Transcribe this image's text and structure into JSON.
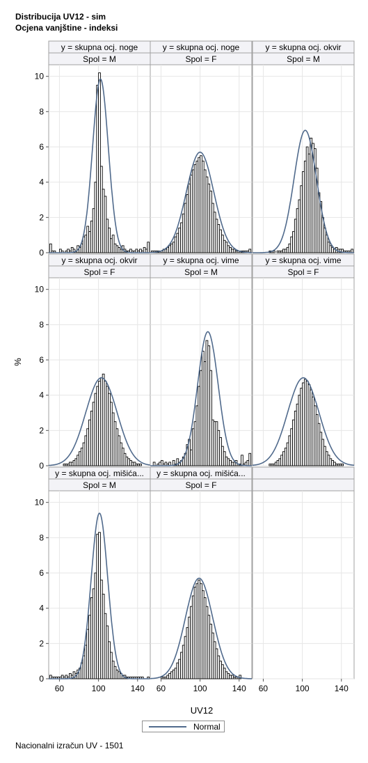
{
  "header": {
    "title": "Distribucija UV12 - sim",
    "subtitle": "Ocjena vanjštine - indeksi"
  },
  "footnote": "Nacionalni izračun UV - 1501",
  "colors": {
    "bar_fill": "#ffffff",
    "bar_edge": "#000000",
    "curve": "#506a8c",
    "header_fill": "#f3f3f7",
    "grid": "#e6e6e6"
  },
  "chart_data": {
    "type": "bar",
    "xlabel": "UV12",
    "ylabel": "%",
    "xlim": [
      49,
      153
    ],
    "ylim": [
      0,
      10.5
    ],
    "xticks": [
      60,
      100,
      140
    ],
    "yticks": [
      0,
      2,
      4,
      6,
      8,
      10
    ],
    "grid": true,
    "legend": {
      "position": "bottom-center",
      "entries": [
        "Normal"
      ]
    },
    "panels": [
      {
        "row_header": "y = skupna ocj. noge",
        "col_header": "Spol = M",
        "x": [
          51,
          53,
          55,
          57,
          59,
          61,
          63,
          65,
          67,
          69,
          71,
          73,
          75,
          77,
          79,
          81,
          83,
          85,
          87,
          89,
          91,
          93,
          95,
          97,
          99,
          101,
          103,
          105,
          107,
          109,
          111,
          113,
          115,
          117,
          119,
          121,
          123,
          125,
          127,
          129,
          131,
          133,
          135,
          137,
          139,
          141,
          143,
          145,
          147,
          149,
          151
        ],
        "values": [
          0.5,
          0.1,
          0.1,
          0,
          0,
          0.2,
          0.1,
          0,
          0.1,
          0.2,
          0.1,
          0.3,
          0.2,
          0.1,
          0.4,
          0.3,
          0.5,
          0.9,
          1.0,
          1.5,
          1.2,
          1.8,
          2.5,
          4.0,
          9.5,
          10.2,
          4.9,
          3.6,
          3.2,
          1.9,
          1.4,
          0.8,
          1.0,
          0.5,
          0.4,
          0.3,
          0.2,
          0.4,
          0.2,
          0.1,
          0.1,
          0.2,
          0.1,
          0.1,
          0.2,
          0.1,
          0.2,
          0.1,
          0.3,
          0.2,
          0.6
        ],
        "normal": {
          "mean": 102,
          "sd": 8.1
        }
      },
      {
        "row_header": "y = skupna ocj. noge",
        "col_header": "Spol = F",
        "x": [
          51,
          53,
          55,
          57,
          59,
          61,
          63,
          65,
          67,
          69,
          71,
          73,
          75,
          77,
          79,
          81,
          83,
          85,
          87,
          89,
          91,
          93,
          95,
          97,
          99,
          101,
          103,
          105,
          107,
          109,
          111,
          113,
          115,
          117,
          119,
          121,
          123,
          125,
          127,
          129,
          131,
          133,
          135,
          137,
          139,
          141,
          143,
          145,
          147,
          149,
          151
        ],
        "values": [
          0.1,
          0.1,
          0.1,
          0.1,
          0.1,
          0.1,
          0.2,
          0.2,
          0.3,
          0.4,
          0.5,
          0.6,
          0.9,
          1.1,
          1.4,
          1.7,
          2.2,
          2.8,
          3.3,
          3.9,
          4.4,
          4.7,
          5.0,
          5.2,
          5.4,
          5.5,
          5.2,
          4.7,
          4.3,
          3.9,
          3.5,
          2.8,
          2.3,
          1.9,
          1.6,
          1.3,
          1.0,
          0.7,
          0.6,
          0.4,
          0.3,
          0.2,
          0.2,
          0.1,
          0.1,
          0.1,
          0.1,
          0.1,
          0.1,
          0.1,
          0.2
        ],
        "normal": {
          "mean": 100,
          "sd": 14
        }
      },
      {
        "row_header": "y = skupna ocj. okvir",
        "col_header": "Spol = M",
        "x": [
          51,
          53,
          55,
          57,
          59,
          61,
          63,
          65,
          67,
          69,
          71,
          73,
          75,
          77,
          79,
          81,
          83,
          85,
          87,
          89,
          91,
          93,
          95,
          97,
          99,
          101,
          103,
          105,
          107,
          109,
          111,
          113,
          115,
          117,
          119,
          121,
          123,
          125,
          127,
          129,
          131,
          133,
          135,
          137,
          139,
          141,
          143,
          145,
          147,
          149,
          151
        ],
        "values": [
          0,
          0,
          0,
          0,
          0,
          0,
          0,
          0,
          0.1,
          0.1,
          0.1,
          0,
          0.1,
          0.1,
          0.1,
          0.2,
          0.2,
          0.3,
          0.5,
          0.9,
          1.2,
          1.9,
          2.5,
          3.0,
          3.8,
          4.6,
          5.2,
          6.0,
          5.6,
          6.5,
          6.2,
          5.9,
          4.8,
          3.4,
          2.9,
          2.0,
          1.4,
          1.0,
          0.6,
          0.4,
          0.3,
          0.2,
          0.3,
          0.2,
          0.2,
          0.2,
          0.1,
          0.1,
          0.1,
          0.1,
          0.2
        ],
        "normal": {
          "mean": 103,
          "sd": 11.5
        }
      },
      {
        "row_header": "y = skupna ocj. okvir",
        "col_header": "Spol = F",
        "x": [
          51,
          53,
          55,
          57,
          59,
          61,
          63,
          65,
          67,
          69,
          71,
          73,
          75,
          77,
          79,
          81,
          83,
          85,
          87,
          89,
          91,
          93,
          95,
          97,
          99,
          101,
          103,
          105,
          107,
          109,
          111,
          113,
          115,
          117,
          119,
          121,
          123,
          125,
          127,
          129,
          131,
          133,
          135,
          137,
          139,
          141,
          143,
          145,
          147,
          149,
          151
        ],
        "values": [
          0,
          0,
          0,
          0,
          0,
          0,
          0,
          0.1,
          0.1,
          0.1,
          0.2,
          0.2,
          0.3,
          0.4,
          0.6,
          0.8,
          1.0,
          1.3,
          1.7,
          2.1,
          2.6,
          3.1,
          3.6,
          4.1,
          4.5,
          4.8,
          5.0,
          5.2,
          4.8,
          4.5,
          4.1,
          3.6,
          3.0,
          2.5,
          2.1,
          1.7,
          1.3,
          1.0,
          0.7,
          0.5,
          0.4,
          0.3,
          0.2,
          0.2,
          0.1,
          0.1,
          0.1,
          0,
          0,
          0,
          0
        ],
        "normal": {
          "mean": 103,
          "sd": 16
        }
      },
      {
        "row_header": "y = skupna ocj. vime",
        "col_header": "Spol = M",
        "x": [
          51,
          53,
          55,
          57,
          59,
          61,
          63,
          65,
          67,
          69,
          71,
          73,
          75,
          77,
          79,
          81,
          83,
          85,
          87,
          89,
          91,
          93,
          95,
          97,
          99,
          101,
          103,
          105,
          107,
          109,
          111,
          113,
          115,
          117,
          119,
          121,
          123,
          125,
          127,
          129,
          131,
          133,
          135,
          137,
          139,
          141,
          143,
          145,
          147,
          149,
          151
        ],
        "values": [
          0,
          0.2,
          0,
          0.1,
          0.2,
          0.3,
          0.1,
          0.2,
          0.1,
          0.2,
          0,
          0.3,
          0.1,
          0.4,
          0.2,
          0.3,
          0.5,
          0.7,
          1.2,
          1.5,
          0.9,
          2.1,
          2.5,
          3.4,
          4.5,
          5.4,
          6.5,
          5.9,
          7.1,
          6.8,
          5.4,
          2.6,
          2.5,
          2.5,
          2.0,
          1.6,
          1.1,
          0.8,
          0.5,
          0.4,
          0.3,
          0.2,
          0.2,
          0.3,
          0.1,
          0.1,
          0.6,
          0.1,
          0.2,
          0.3,
          0.7
        ],
        "normal": {
          "mean": 108,
          "sd": 10.5
        }
      },
      {
        "row_header": "y = skupna ocj. vime",
        "col_header": "Spol = F",
        "x": [
          51,
          53,
          55,
          57,
          59,
          61,
          63,
          65,
          67,
          69,
          71,
          73,
          75,
          77,
          79,
          81,
          83,
          85,
          87,
          89,
          91,
          93,
          95,
          97,
          99,
          101,
          103,
          105,
          107,
          109,
          111,
          113,
          115,
          117,
          119,
          121,
          123,
          125,
          127,
          129,
          131,
          133,
          135,
          137,
          139,
          141,
          143,
          145,
          147,
          149,
          151
        ],
        "values": [
          0,
          0,
          0,
          0,
          0,
          0,
          0,
          0,
          0.1,
          0.1,
          0.1,
          0.2,
          0.3,
          0.4,
          0.6,
          0.8,
          1.0,
          1.3,
          1.7,
          2.1,
          2.6,
          3.1,
          3.5,
          4.0,
          4.4,
          4.7,
          4.9,
          4.8,
          4.6,
          4.3,
          3.9,
          3.4,
          2.9,
          2.4,
          1.9,
          1.5,
          1.1,
          0.8,
          0.6,
          0.4,
          0.3,
          0.2,
          0.1,
          0.1,
          0.1,
          0.1,
          0,
          0,
          0,
          0,
          0
        ],
        "normal": {
          "mean": 101,
          "sd": 16
        }
      },
      {
        "row_header": "y = skupna ocj. mišića...",
        "col_header": "Spol = M",
        "x": [
          51,
          53,
          55,
          57,
          59,
          61,
          63,
          65,
          67,
          69,
          71,
          73,
          75,
          77,
          79,
          81,
          83,
          85,
          87,
          89,
          91,
          93,
          95,
          97,
          99,
          101,
          103,
          105,
          107,
          109,
          111,
          113,
          115,
          117,
          119,
          121,
          123,
          125,
          127,
          129,
          131,
          133,
          135,
          137,
          139,
          141,
          143,
          145,
          147,
          149,
          151
        ],
        "values": [
          0.2,
          0.1,
          0.1,
          0.1,
          0.1,
          0.1,
          0.2,
          0.1,
          0.2,
          0.1,
          0.3,
          0.2,
          0.4,
          0.3,
          0.5,
          0.6,
          0.9,
          1.3,
          1.9,
          2.8,
          3.6,
          4.6,
          5.1,
          6.0,
          8.2,
          8.3,
          5.6,
          4.8,
          3.7,
          3.0,
          2.1,
          1.5,
          1.0,
          0.7,
          0.5,
          0.4,
          0.3,
          0.2,
          0.2,
          0.1,
          0.1,
          0.1,
          0.1,
          0.1,
          0.1,
          0.1,
          0.1,
          0.1,
          0,
          0,
          0.1
        ],
        "normal": {
          "mean": 101,
          "sd": 8.5
        }
      },
      {
        "row_header": "y = skupna ocj. mišića...",
        "col_header": "Spol = F",
        "x": [
          51,
          53,
          55,
          57,
          59,
          61,
          63,
          65,
          67,
          69,
          71,
          73,
          75,
          77,
          79,
          81,
          83,
          85,
          87,
          89,
          91,
          93,
          95,
          97,
          99,
          101,
          103,
          105,
          107,
          109,
          111,
          113,
          115,
          117,
          119,
          121,
          123,
          125,
          127,
          129,
          131,
          133,
          135,
          137,
          139,
          141,
          143,
          145,
          147,
          149,
          151
        ],
        "values": [
          0,
          0,
          0,
          0,
          0,
          0.1,
          0.1,
          0.1,
          0.2,
          0.3,
          0.4,
          0.5,
          0.6,
          0.9,
          1.1,
          1.5,
          1.9,
          2.4,
          2.9,
          3.5,
          4.1,
          4.7,
          5.2,
          5.4,
          5.6,
          5.4,
          5.0,
          4.6,
          4.1,
          3.6,
          3.1,
          2.6,
          2.1,
          1.7,
          1.3,
          1.0,
          0.8,
          0.6,
          0.4,
          0.3,
          0.2,
          0.2,
          0.1,
          0.1,
          0.1,
          0.2,
          0,
          0,
          0,
          0,
          0
        ],
        "normal": {
          "mean": 99,
          "sd": 14
        }
      },
      {
        "row_header": "",
        "col_header": "",
        "x": [],
        "values": [],
        "normal": null
      }
    ]
  }
}
